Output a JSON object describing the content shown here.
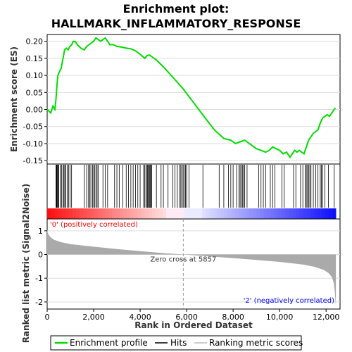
{
  "chart_data": {
    "type": "line",
    "title_line1": "Enrichment plot:",
    "title_line2": "HALLMARK_INFLAMMATORY_RESPONSE",
    "es_panel": {
      "ylabel": "Enrichment score (ES)",
      "ylim": [
        -0.16,
        0.22
      ],
      "yticks": [
        -0.15,
        -0.1,
        -0.05,
        0.0,
        0.05,
        0.1,
        0.15,
        0.2
      ],
      "ytick_labels": [
        "-0.15",
        "-0.10",
        "-0.05",
        "0.00",
        "0.05",
        "0.10",
        "0.15",
        "0.20"
      ],
      "series": [
        {
          "name": "Enrichment profile",
          "color": "#00dd00",
          "x": [
            0,
            150,
            250,
            330,
            380,
            420,
            460,
            520,
            600,
            680,
            750,
            820,
            900,
            980,
            1050,
            1120,
            1200,
            1300,
            1450,
            1600,
            1700,
            1800,
            1900,
            2000,
            2100,
            2200,
            2300,
            2400,
            2500,
            2600,
            2700,
            2850,
            3000,
            3200,
            3400,
            3600,
            3800,
            4000,
            4200,
            4300,
            4400,
            4500,
            4700,
            5000,
            5400,
            5857,
            6300,
            6800,
            7200,
            7600,
            7900,
            8100,
            8300,
            8500,
            8700,
            9000,
            9200,
            9400,
            9550,
            9700,
            9850,
            10000,
            10150,
            10300,
            10450,
            10550,
            10650,
            10750,
            10850,
            10950,
            11050,
            11150,
            11250,
            11350,
            11450,
            11550,
            11650,
            11750,
            11850,
            11950,
            12050,
            12150,
            12250,
            12350,
            12400
          ],
          "y": [
            0.0,
            -0.01,
            0.01,
            0.0,
            0.03,
            0.07,
            0.1,
            0.11,
            0.12,
            0.15,
            0.175,
            0.18,
            0.175,
            0.185,
            0.19,
            0.2,
            0.2,
            0.19,
            0.18,
            0.175,
            0.185,
            0.19,
            0.195,
            0.2,
            0.21,
            0.205,
            0.2,
            0.205,
            0.21,
            0.2,
            0.19,
            0.19,
            0.185,
            0.183,
            0.18,
            0.178,
            0.172,
            0.162,
            0.15,
            0.158,
            0.16,
            0.155,
            0.145,
            0.125,
            0.095,
            0.06,
            0.02,
            -0.025,
            -0.06,
            -0.085,
            -0.09,
            -0.1,
            -0.095,
            -0.09,
            -0.1,
            -0.115,
            -0.12,
            -0.125,
            -0.12,
            -0.11,
            -0.115,
            -0.12,
            -0.13,
            -0.125,
            -0.14,
            -0.13,
            -0.12,
            -0.125,
            -0.12,
            -0.125,
            -0.13,
            -0.11,
            -0.09,
            -0.08,
            -0.07,
            -0.065,
            -0.06,
            -0.04,
            -0.025,
            -0.02,
            -0.015,
            -0.02,
            -0.01,
            0.0,
            0.005
          ]
        }
      ]
    },
    "hits_panel": {
      "series": [
        {
          "name": "Hits",
          "color": "#000000",
          "positions": [
            380,
            400,
            420,
            450,
            480,
            500,
            560,
            620,
            680,
            720,
            760,
            800,
            860,
            920,
            980,
            1050,
            1600,
            1700,
            1780,
            1830,
            1880,
            1950,
            2000,
            2050,
            2100,
            2150,
            2200,
            2400,
            2500,
            2600,
            2900,
            3000,
            3100,
            3250,
            3400,
            3500,
            3600,
            3700,
            3800,
            3900,
            4000,
            4150,
            4200,
            4250,
            4300,
            4330,
            4360,
            4400,
            4430,
            4460,
            4500,
            4700,
            4900,
            5000,
            5200,
            5400,
            5500,
            5600,
            5700,
            5750,
            5800,
            5850,
            5900,
            5950,
            6000,
            6100,
            6700,
            7400,
            7600,
            7800,
            7900,
            8000,
            8150,
            8250,
            8300,
            8350,
            8400,
            8450,
            8500,
            8600,
            9100,
            9200,
            9300,
            9400,
            9600,
            9700,
            9800,
            10100,
            10200,
            10600,
            10700,
            10900,
            11000,
            11100,
            11150,
            11200,
            11250,
            11300,
            11350,
            11450,
            11550,
            11650,
            11750,
            11800,
            11850,
            11950,
            12100,
            12350
          ]
        }
      ]
    },
    "metric_panel": {
      "ylabel": "Ranked list metric (Signal2Noise)",
      "ylim": [
        -2.3,
        1.5
      ],
      "yticks": [
        -2,
        -1,
        0,
        1
      ],
      "ytick_labels": [
        "-2",
        "-1",
        "0",
        "1"
      ],
      "series": [
        {
          "name": "Ranking metric scores",
          "color": "#aaaaaa",
          "x": [
            0,
            50,
            150,
            300,
            600,
            1000,
            2000,
            3000,
            4000,
            5000,
            5857,
            7000,
            8000,
            9000,
            10000,
            11000,
            11500,
            11900,
            12100,
            12250,
            12330,
            12380,
            12420
          ],
          "y": [
            1.0,
            0.85,
            0.72,
            0.62,
            0.52,
            0.44,
            0.33,
            0.23,
            0.14,
            0.06,
            0.0,
            -0.08,
            -0.15,
            -0.23,
            -0.31,
            -0.42,
            -0.52,
            -0.65,
            -0.78,
            -0.95,
            -1.2,
            -1.6,
            -2.2
          ]
        }
      ],
      "zero_cross_label": "Zero cross at 5857",
      "zero_cross": 5857,
      "pos_label": "'0' (positively correlated)",
      "neg_label": "'2' (negatively correlated)"
    },
    "x_axis": {
      "xlabel": "Rank in Ordered Dataset",
      "xlim": [
        0,
        12600
      ],
      "max_rank": 12420,
      "xticks": [
        0,
        2000,
        4000,
        6000,
        8000,
        10000,
        12000
      ],
      "xtick_labels": [
        "0",
        "2,000",
        "4,000",
        "6,000",
        "8,000",
        "10,000",
        "12,000"
      ]
    },
    "legend": {
      "placement": "bottom",
      "entries": [
        "Enrichment profile",
        "Hits",
        "Ranking metric scores"
      ]
    },
    "colors": {
      "profile": "#00dd00",
      "pos_label": "#ff0000",
      "neg_label": "#0000ff",
      "grid": "#999999"
    }
  }
}
